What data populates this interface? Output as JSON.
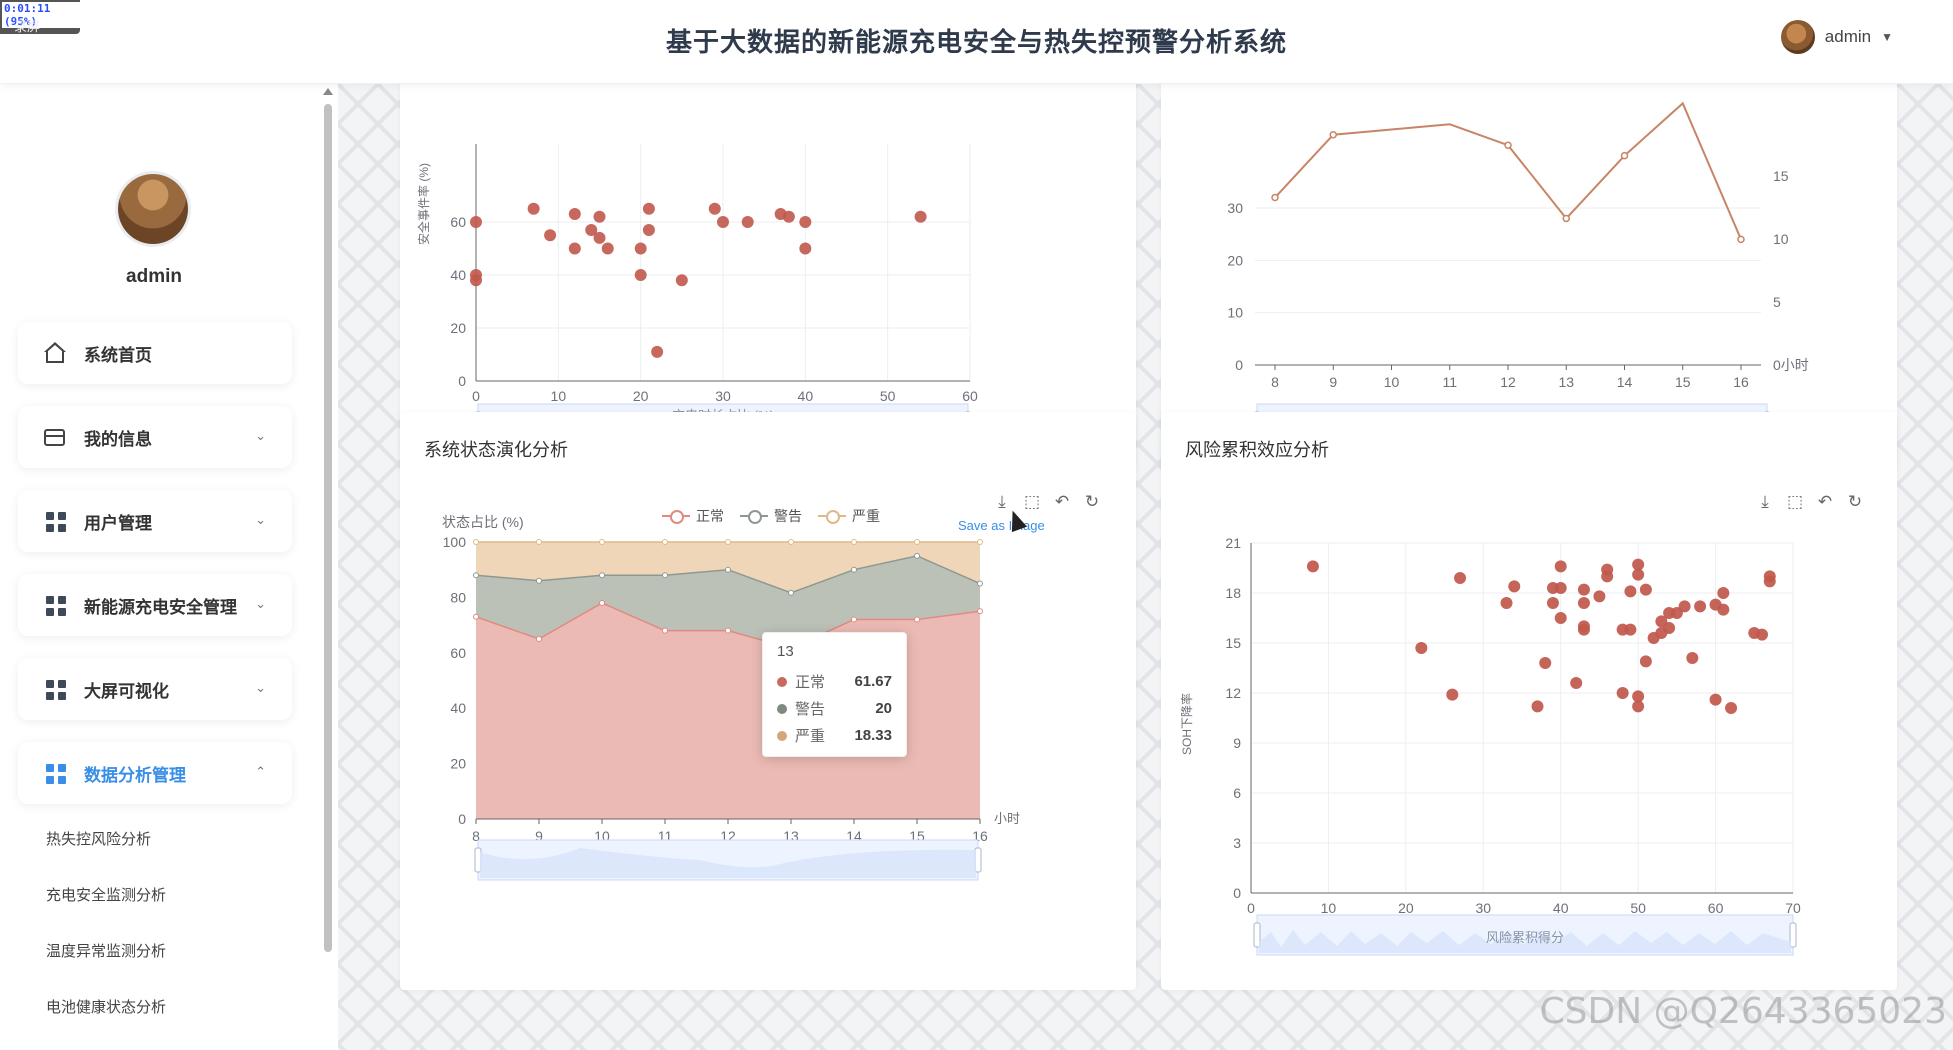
{
  "recorder": {
    "time": "0:01:11 (95%)",
    "label": "录屏"
  },
  "header": {
    "title": "基于大数据的新能源充电安全与热失控预警分析系统",
    "user": "admin",
    "caret": "▼"
  },
  "profile": {
    "name": "admin"
  },
  "menu": [
    {
      "label": "系统首页",
      "icon": "home-icon",
      "arrow": "",
      "active": false
    },
    {
      "label": "我的信息",
      "icon": "id-card-icon",
      "arrow": "⌄",
      "active": false
    },
    {
      "label": "用户管理",
      "icon": "grid-icon",
      "arrow": "⌄",
      "active": false
    },
    {
      "label": "新能源充电安全管理",
      "icon": "grid-icon",
      "arrow": "⌄",
      "active": false
    },
    {
      "label": "大屏可视化",
      "icon": "grid-icon",
      "arrow": "⌄",
      "active": false
    },
    {
      "label": "数据分析管理",
      "icon": "grid-icon",
      "arrow": "⌃",
      "active": true
    }
  ],
  "submenu": [
    "热失控风险分析",
    "充电安全监测分析",
    "温度异常监测分析",
    "电池健康状态分析"
  ],
  "toolbox": {
    "save_tip": "Save as Image"
  },
  "watermark": "CSDN @Q2643365023",
  "chart_data": [
    {
      "type": "scatter",
      "title": "",
      "xlabel": "充电时长占比 (%)",
      "ylabel": "安全事件率 (%)",
      "xlim": [
        0,
        60
      ],
      "ylim": [
        0,
        60
      ],
      "xticks": [
        "0",
        "10",
        "20",
        "30",
        "40",
        "50",
        "60"
      ],
      "yticks": [
        "0",
        "20",
        "40",
        "60"
      ],
      "points": [
        [
          0,
          60
        ],
        [
          0,
          40
        ],
        [
          0,
          38
        ],
        [
          7,
          65
        ],
        [
          9,
          55
        ],
        [
          12,
          63
        ],
        [
          12,
          50
        ],
        [
          14,
          57
        ],
        [
          15,
          62
        ],
        [
          15,
          54
        ],
        [
          16,
          50
        ],
        [
          20,
          50
        ],
        [
          20,
          40
        ],
        [
          21,
          57
        ],
        [
          21,
          65
        ],
        [
          22,
          11
        ],
        [
          25,
          38
        ],
        [
          29,
          65
        ],
        [
          30,
          60
        ],
        [
          33,
          60
        ],
        [
          37,
          63
        ],
        [
          38,
          62
        ],
        [
          40,
          60
        ],
        [
          40,
          50
        ],
        [
          54,
          62
        ]
      ]
    },
    {
      "type": "line",
      "title": "",
      "x": [
        "8",
        "9",
        "10",
        "11",
        "12",
        "13",
        "14",
        "15",
        "16"
      ],
      "ylabel_right_unit": "小时",
      "yticks_left": [
        "0",
        "10",
        "20",
        "30"
      ],
      "yticks_right": [
        "0",
        "5",
        "10",
        "15"
      ],
      "series": [
        {
          "name": "",
          "values": [
            32,
            44,
            45,
            46,
            42,
            28,
            40,
            50,
            24
          ]
        }
      ]
    },
    {
      "type": "area",
      "title": "系统状态演化分析",
      "ylabel": "状态占比 (%)",
      "xlabel": "小时",
      "categories": [
        "8",
        "9",
        "10",
        "11",
        "12",
        "13",
        "14",
        "15",
        "16"
      ],
      "ylim": [
        0,
        100
      ],
      "yticks": [
        "0",
        "20",
        "40",
        "60",
        "80",
        "100"
      ],
      "series": [
        {
          "name": "正常",
          "color": "#e08a82",
          "values": [
            73,
            65,
            78,
            68,
            68,
            61.67,
            72,
            72,
            75
          ]
        },
        {
          "name": "警告",
          "color": "#8e9890",
          "values": [
            15,
            21,
            10,
            20,
            22,
            20,
            18,
            23,
            10
          ]
        },
        {
          "name": "严重",
          "color": "#e0b88a",
          "values": [
            12,
            14,
            12,
            12,
            10,
            18.33,
            10,
            5,
            15
          ]
        }
      ],
      "tooltip": {
        "title": "13",
        "rows": [
          {
            "name": "正常",
            "value": "61.67",
            "color": "#c96a61"
          },
          {
            "name": "警告",
            "value": "20",
            "color": "#7e8a80"
          },
          {
            "name": "严重",
            "value": "18.33",
            "color": "#d4a777"
          }
        ]
      }
    },
    {
      "type": "scatter",
      "title": "风险累积效应分析",
      "xlabel": "风险累积得分",
      "ylabel": "SOH下降率",
      "xlim": [
        0,
        70
      ],
      "ylim": [
        0,
        21
      ],
      "xticks": [
        "0",
        "10",
        "20",
        "30",
        "40",
        "50",
        "60",
        "70"
      ],
      "yticks": [
        "0",
        "3",
        "6",
        "9",
        "12",
        "15",
        "18",
        "21"
      ],
      "points": [
        [
          8,
          19.6
        ],
        [
          22,
          14.7
        ],
        [
          26,
          11.9
        ],
        [
          27,
          18.9
        ],
        [
          33,
          17.4
        ],
        [
          34,
          18.4
        ],
        [
          37,
          11.2
        ],
        [
          38,
          13.8
        ],
        [
          39,
          18.3
        ],
        [
          39,
          17.4
        ],
        [
          40,
          16.5
        ],
        [
          40,
          18.3
        ],
        [
          40,
          19.6
        ],
        [
          42,
          12.6
        ],
        [
          43,
          16
        ],
        [
          43,
          15.8
        ],
        [
          43,
          18.2
        ],
        [
          43,
          17.4
        ],
        [
          45,
          17.8
        ],
        [
          46,
          19
        ],
        [
          46,
          19.4
        ],
        [
          48,
          12
        ],
        [
          48,
          15.8
        ],
        [
          49,
          15.8
        ],
        [
          49,
          18.1
        ],
        [
          50,
          19.7
        ],
        [
          50,
          19.1
        ],
        [
          50,
          11.8
        ],
        [
          50,
          11.2
        ],
        [
          51,
          18.2
        ],
        [
          51,
          13.9
        ],
        [
          52,
          15.3
        ],
        [
          53,
          15.6
        ],
        [
          53,
          16.3
        ],
        [
          54,
          16.8
        ],
        [
          54,
          15.9
        ],
        [
          55,
          16.8
        ],
        [
          56,
          17.2
        ],
        [
          57,
          14.1
        ],
        [
          58,
          17.2
        ],
        [
          60,
          17.3
        ],
        [
          60,
          11.6
        ],
        [
          61,
          17
        ],
        [
          61,
          18
        ],
        [
          62,
          11.1
        ],
        [
          65,
          15.6
        ],
        [
          66,
          15.5
        ],
        [
          67,
          19
        ],
        [
          67,
          18.7
        ]
      ]
    }
  ]
}
